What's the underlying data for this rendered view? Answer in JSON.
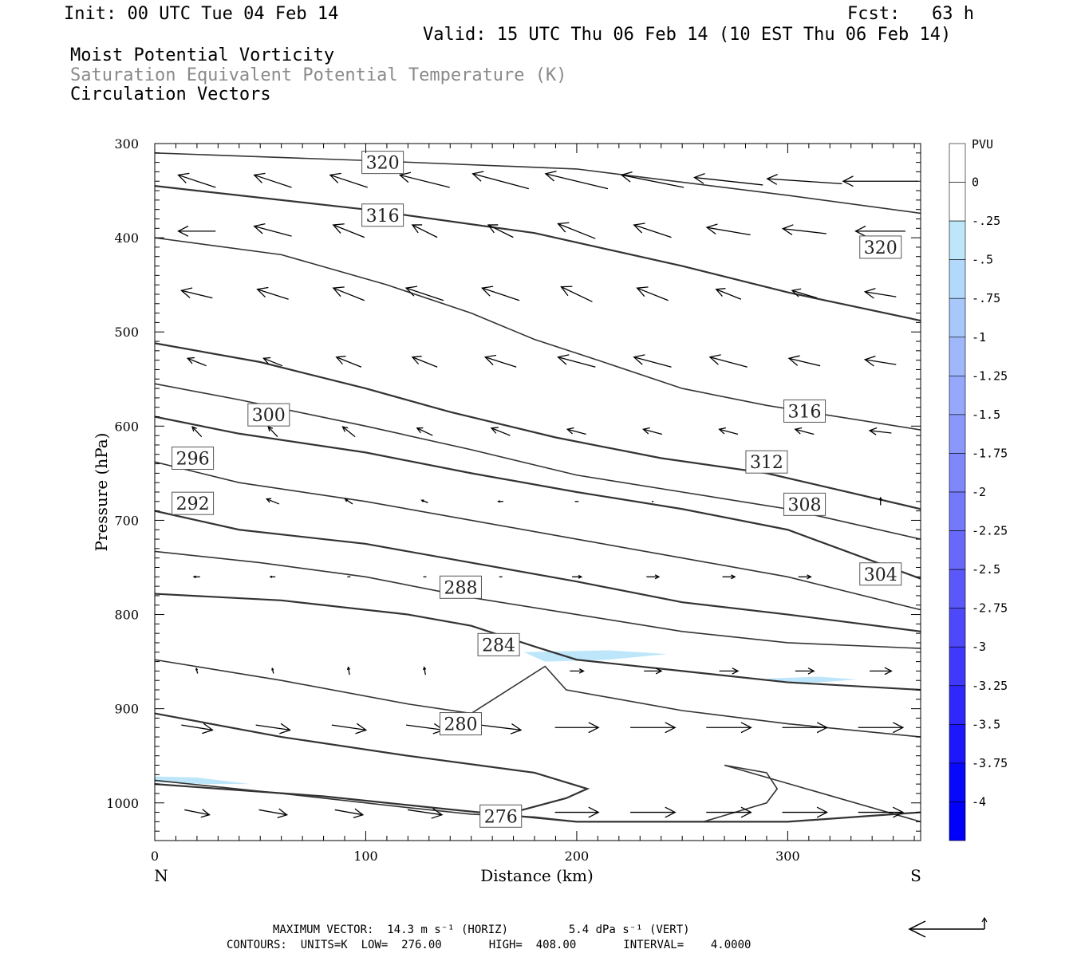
{
  "header": {
    "init": "Init: 00 UTC Tue 04 Feb 14",
    "fcst": "Fcst:   63 h",
    "valid": "Valid: 15 UTC Thu 06 Feb 14 (10 EST Thu 06 Feb 14)",
    "line1": "Moist Potential Vorticity",
    "line2": "Saturation Equivalent Potential Temperature (K)",
    "line3": "Circulation Vectors"
  },
  "footer": {
    "max_vector": "MAXIMUM VECTOR:  14.3 m s⁻¹ (HORIZ)         5.4 dPa s⁻¹ (VERT)",
    "contours": "CONTOURS:  UNITS=K  LOW=  276.00       HIGH=  408.00       INTERVAL=    4.0000"
  },
  "chart_data": {
    "type": "contour",
    "xlabel": "Distance (km)",
    "ylabel": "Pressure (hPa)",
    "xlim": [
      0,
      363
    ],
    "ylim": [
      1040,
      300
    ],
    "xticks": [
      "0",
      "100",
      "200",
      "300"
    ],
    "xtick_values": [
      0,
      100,
      200,
      300
    ],
    "yticks": [
      "300",
      "400",
      "500",
      "600",
      "700",
      "800",
      "900",
      "1000"
    ],
    "ytick_values": [
      300,
      400,
      500,
      600,
      700,
      800,
      900,
      1000
    ],
    "left_end_label": "N",
    "right_end_label": "S",
    "colorbar": {
      "title": "PVU",
      "labels": [
        "0",
        "-.25",
        "-.5",
        "-.75",
        "-1",
        "-1.25",
        "-1.5",
        "-1.75",
        "-2",
        "-2.25",
        "-2.5",
        "-2.75",
        "-3",
        "-3.25",
        "-3.5",
        "-3.75",
        "-4"
      ],
      "colors": [
        "#ffffff",
        "#ffffff",
        "#bde6fb",
        "#b2d8fb",
        "#a8c8fb",
        "#9fb8fb",
        "#95a8fb",
        "#8a98fb",
        "#7f88fb",
        "#7478fb",
        "#6868fb",
        "#5b58fb",
        "#4e48fb",
        "#4038fb",
        "#3028fb",
        "#1c18fb",
        "#0808fb",
        "#0000fb"
      ]
    },
    "contours": [
      {
        "label": "320",
        "label_at": [
          108,
          320
        ],
        "points": [
          [
            0,
            310
          ],
          [
            100,
            318
          ],
          [
            200,
            327
          ],
          [
            300,
            355
          ],
          [
            363,
            374
          ]
        ]
      },
      {
        "label": "320",
        "label_at": [
          344,
          410
        ],
        "points": [
          [
            0,
            345
          ],
          [
            100,
            370
          ],
          [
            180,
            395
          ],
          [
            250,
            430
          ],
          [
            300,
            458
          ],
          [
            363,
            488
          ]
        ]
      },
      {
        "label": "316",
        "label_at": [
          108,
          376
        ],
        "points": [
          [
            0,
            400
          ],
          [
            60,
            418
          ],
          [
            110,
            450
          ],
          [
            150,
            480
          ],
          [
            180,
            508
          ],
          [
            210,
            530
          ],
          [
            250,
            560
          ],
          [
            290,
            578
          ],
          [
            363,
            604
          ]
        ]
      },
      {
        "label": "316",
        "label_at": [
          308,
          584
        ],
        "points": [
          [
            0,
            512
          ],
          [
            50,
            532
          ],
          [
            100,
            560
          ],
          [
            140,
            585
          ],
          [
            190,
            612
          ],
          [
            240,
            634
          ],
          [
            290,
            650
          ],
          [
            363,
            688
          ]
        ]
      },
      {
        "label": "312",
        "label_at": [
          290,
          638
        ],
        "points": [
          [
            0,
            555
          ],
          [
            40,
            572
          ],
          [
            100,
            600
          ],
          [
            150,
            625
          ],
          [
            200,
            652
          ],
          [
            250,
            670
          ],
          [
            300,
            688
          ],
          [
            363,
            720
          ]
        ]
      },
      {
        "label": "308",
        "label_at": [
          308,
          683
        ],
        "points": [
          [
            0,
            590
          ],
          [
            40,
            608
          ],
          [
            100,
            628
          ],
          [
            150,
            650
          ],
          [
            200,
            670
          ],
          [
            250,
            688
          ],
          [
            300,
            710
          ],
          [
            363,
            762
          ]
        ]
      },
      {
        "label": "304",
        "label_at": [
          344,
          757
        ],
        "points": [
          [
            0,
            638
          ],
          [
            40,
            660
          ],
          [
            100,
            680
          ],
          [
            150,
            700
          ],
          [
            200,
            720
          ],
          [
            250,
            740
          ],
          [
            300,
            760
          ],
          [
            363,
            795
          ]
        ]
      },
      {
        "label": "300",
        "label_at": [
          54,
          588
        ],
        "points": [
          [
            0,
            690
          ],
          [
            40,
            710
          ],
          [
            100,
            725
          ],
          [
            150,
            745
          ],
          [
            200,
            765
          ],
          [
            250,
            787
          ],
          [
            300,
            800
          ],
          [
            363,
            818
          ]
        ]
      },
      {
        "label": "296",
        "label_at": [
          18,
          634
        ],
        "points": [
          [
            0,
            733
          ],
          [
            50,
            745
          ],
          [
            100,
            760
          ],
          [
            150,
            782
          ],
          [
            200,
            800
          ],
          [
            250,
            818
          ],
          [
            300,
            830
          ],
          [
            363,
            836
          ]
        ]
      },
      {
        "label": "292",
        "label_at": [
          18,
          682
        ],
        "points": [
          [
            0,
            778
          ],
          [
            60,
            785
          ],
          [
            120,
            800
          ],
          [
            150,
            812
          ],
          [
            180,
            834
          ],
          [
            200,
            848
          ],
          [
            250,
            860
          ],
          [
            300,
            872
          ],
          [
            363,
            880
          ]
        ]
      },
      {
        "label": "288",
        "label_at": [
          145,
          771
        ],
        "points": [
          [
            0,
            848
          ],
          [
            60,
            870
          ],
          [
            120,
            895
          ],
          [
            150,
            905
          ],
          [
            185,
            855
          ],
          [
            195,
            880
          ],
          [
            250,
            902
          ],
          [
            300,
            916
          ],
          [
            363,
            930
          ]
        ]
      },
      {
        "label": "284",
        "label_at": [
          163,
          832
        ],
        "points": [
          [
            0,
            905
          ],
          [
            60,
            930
          ],
          [
            120,
            950
          ],
          [
            180,
            968
          ],
          [
            205,
            985
          ],
          [
            195,
            995
          ],
          [
            170,
            1010
          ],
          [
            160,
            1015
          ]
        ]
      },
      {
        "label": "280",
        "label_at": [
          145,
          916
        ],
        "points": [
          [
            0,
            976
          ],
          [
            60,
            990
          ],
          [
            120,
            1005
          ],
          [
            150,
            1012
          ],
          [
            180,
            1015
          ],
          [
            200,
            1020
          ],
          [
            260,
            1020
          ],
          [
            290,
            1000
          ],
          [
            295,
            985
          ],
          [
            290,
            968
          ],
          [
            270,
            960
          ],
          [
            363,
            1020
          ]
        ]
      },
      {
        "label": "276",
        "label_at": [
          164,
          1014
        ],
        "points": [
          [
            0,
            980
          ],
          [
            80,
            993
          ],
          [
            140,
            1007
          ],
          [
            200,
            1020
          ],
          [
            300,
            1020
          ],
          [
            363,
            1010
          ]
        ]
      }
    ],
    "pv_shading": [
      {
        "value": -0.5,
        "points": [
          [
            175,
            840
          ],
          [
            215,
            838
          ],
          [
            243,
            842
          ],
          [
            215,
            848
          ],
          [
            185,
            850
          ]
        ]
      },
      {
        "value": -0.5,
        "points": [
          [
            290,
            868
          ],
          [
            315,
            866
          ],
          [
            333,
            869
          ],
          [
            315,
            872
          ],
          [
            295,
            872
          ]
        ]
      },
      {
        "value": -0.5,
        "points": [
          [
            0,
            972
          ],
          [
            20,
            973
          ],
          [
            45,
            980
          ],
          [
            25,
            980
          ],
          [
            0,
            978
          ]
        ]
      }
    ],
    "vectors": {
      "x": [
        20,
        56,
        92,
        128,
        164,
        200,
        236,
        272,
        308,
        344
      ],
      "rows": [
        {
          "p": 340,
          "u": [
            -0.6,
            -0.6,
            -0.6,
            -0.8,
            -0.9,
            -1.0,
            -1.0,
            -1.1,
            -1.2,
            -1.2
          ],
          "v": [
            0.05,
            0.05,
            0.05,
            0.05,
            0.06,
            0.06,
            0.05,
            0.03,
            0.02,
            0.0
          ]
        },
        {
          "p": 393,
          "u": [
            -0.6,
            -0.6,
            -0.5,
            -0.4,
            -0.4,
            -0.6,
            -0.6,
            -0.7,
            -0.7,
            -0.8
          ],
          "v": [
            0.0,
            0.04,
            0.05,
            0.05,
            0.05,
            0.06,
            0.05,
            0.03,
            0.02,
            0.0
          ]
        },
        {
          "p": 460,
          "u": [
            -0.5,
            -0.5,
            -0.5,
            -0.6,
            -0.6,
            -0.5,
            -0.5,
            -0.4,
            -0.4,
            -0.5
          ],
          "v": [
            0.03,
            0.04,
            0.05,
            0.05,
            0.05,
            0.06,
            0.05,
            0.04,
            0.03,
            0.02
          ]
        },
        {
          "p": 532,
          "u": [
            -0.3,
            -0.3,
            -0.4,
            -0.4,
            -0.5,
            -0.6,
            -0.6,
            -0.6,
            -0.5,
            -0.5
          ],
          "v": [
            0.03,
            0.03,
            0.04,
            0.04,
            0.04,
            0.04,
            0.04,
            0.04,
            0.03,
            0.02
          ]
        },
        {
          "p": 606,
          "u": [
            -0.15,
            -0.15,
            -0.2,
            -0.25,
            -0.3,
            -0.3,
            -0.3,
            -0.3,
            -0.3,
            -0.35
          ],
          "v": [
            0.04,
            0.04,
            0.04,
            0.03,
            0.03,
            0.02,
            0.02,
            0.02,
            0.02,
            0.01
          ]
        },
        {
          "p": 680,
          "u": [
            -0.25,
            -0.2,
            -0.12,
            -0.1,
            -0.08,
            -0.06,
            -0.03,
            0.0,
            0.0,
            0.0
          ],
          "v": [
            0.03,
            0.02,
            0.02,
            0.01,
            0.0,
            0.0,
            0.0,
            0.0,
            0.02,
            0.03
          ]
        },
        {
          "p": 760,
          "u": [
            -0.1,
            -0.08,
            -0.05,
            -0.05,
            -0.05,
            0.15,
            0.2,
            0.2,
            0.2,
            0.2
          ],
          "v": [
            0.0,
            0.0,
            0.0,
            0.0,
            0.0,
            0.0,
            0.0,
            0.0,
            0.0,
            0.0
          ]
        },
        {
          "p": 860,
          "u": [
            -0.02,
            -0.02,
            -0.02,
            -0.02,
            0.0,
            0.22,
            0.28,
            0.3,
            0.3,
            0.35
          ],
          "v": [
            0.02,
            0.02,
            0.03,
            0.03,
            0.0,
            0.0,
            0.0,
            0.0,
            0.0,
            0.0
          ]
        },
        {
          "p": 920,
          "u": [
            0.5,
            0.55,
            0.55,
            0.6,
            0.65,
            0.7,
            0.72,
            0.72,
            0.72,
            0.72
          ],
          "v": [
            -0.02,
            -0.02,
            -0.02,
            -0.02,
            -0.02,
            0.0,
            0.0,
            0.0,
            0.0,
            0.0
          ]
        },
        {
          "p": 1010,
          "u": [
            0.4,
            0.45,
            0.45,
            0.55,
            0.6,
            0.7,
            0.72,
            0.72,
            0.72,
            0.72
          ],
          "v": [
            -0.02,
            -0.02,
            -0.02,
            -0.02,
            -0.02,
            0.0,
            0.0,
            0.0,
            0.0,
            0.0
          ]
        }
      ]
    }
  }
}
